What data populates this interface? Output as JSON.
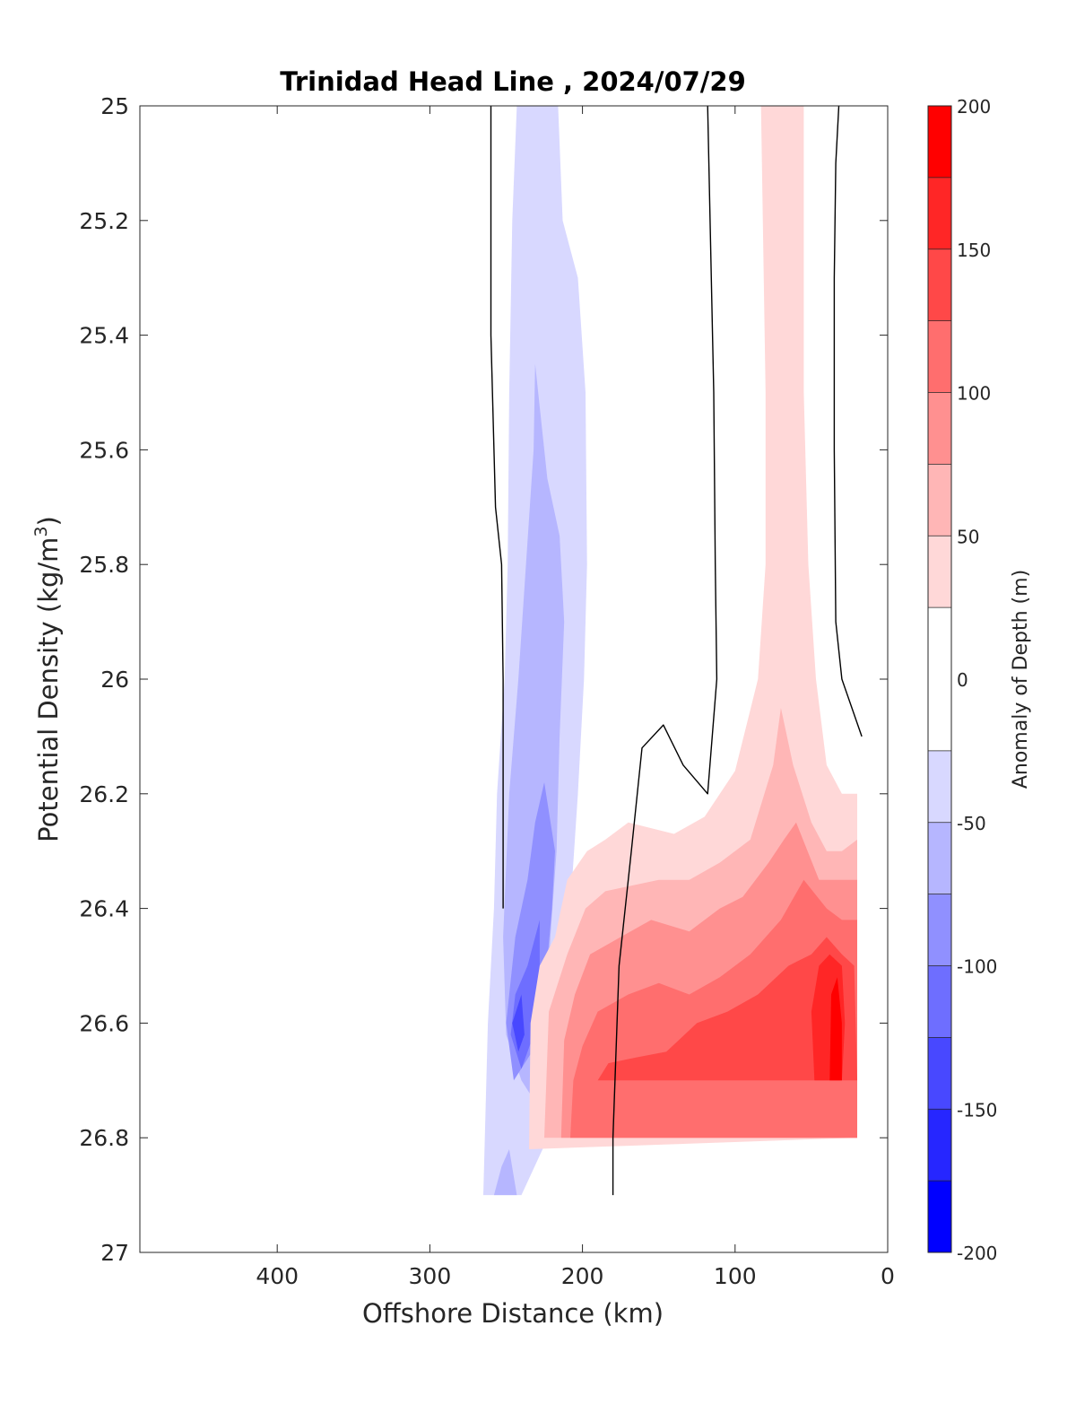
{
  "chart_data": {
    "type": "contourf",
    "title": "Trinidad Head Line , 2024/07/29",
    "xlabel": "Offshore Distance (km)",
    "ylabel_main": "Potential Density (kg/m",
    "ylabel_sup": "3",
    "ylabel_close": ")",
    "x_reversed": true,
    "xlim": [
      0,
      490
    ],
    "ylim": [
      25,
      27
    ],
    "y_reversed": true,
    "xticks": [
      400,
      300,
      200,
      100,
      0
    ],
    "xtick_labels": [
      "400",
      "300",
      "200",
      "100",
      "0"
    ],
    "yticks": [
      25,
      25.2,
      25.4,
      25.6,
      25.8,
      26,
      26.2,
      26.4,
      26.6,
      26.8,
      27
    ],
    "ytick_labels": [
      "25",
      "25.2",
      "25.4",
      "25.6",
      "25.8",
      "26",
      "26.2",
      "26.4",
      "26.6",
      "26.8",
      "27"
    ],
    "colorbar": {
      "label": "Anomaly of Depth (m)",
      "range": [
        -200,
        200
      ],
      "tick_values": [
        200,
        150,
        100,
        50,
        0,
        -50,
        -100,
        -150,
        -200
      ],
      "tick_labels": [
        "200",
        "150",
        "100",
        "50",
        "0",
        "-50",
        "-100",
        "-150",
        "-200"
      ],
      "levels": [
        {
          "from": 175,
          "to": 200,
          "color": "#ff0000"
        },
        {
          "from": 150,
          "to": 175,
          "color": "#ff2626"
        },
        {
          "from": 125,
          "to": 150,
          "color": "#ff4848"
        },
        {
          "from": 100,
          "to": 125,
          "color": "#ff6e6e"
        },
        {
          "from": 75,
          "to": 100,
          "color": "#ff9090"
        },
        {
          "from": 50,
          "to": 75,
          "color": "#ffb6b6"
        },
        {
          "from": 25,
          "to": 50,
          "color": "#ffd8d8"
        },
        {
          "from": -25,
          "to": 25,
          "color": "#ffffff"
        },
        {
          "from": -50,
          "to": -25,
          "color": "#d8d8ff"
        },
        {
          "from": -75,
          "to": -50,
          "color": "#b6b6ff"
        },
        {
          "from": -100,
          "to": -75,
          "color": "#9090ff"
        },
        {
          "from": -125,
          "to": -100,
          "color": "#6e6eff"
        },
        {
          "from": -150,
          "to": -125,
          "color": "#4848ff"
        },
        {
          "from": -175,
          "to": -150,
          "color": "#2626ff"
        },
        {
          "from": -200,
          "to": -175,
          "color": "#0000ff"
        }
      ]
    },
    "zero_contours": [
      [
        [
          260,
          25.0
        ],
        [
          260,
          25.4
        ],
        [
          257,
          25.7
        ],
        [
          253,
          25.8
        ],
        [
          252,
          26.0
        ],
        [
          252,
          26.4
        ]
      ],
      [
        [
          118,
          25.0
        ],
        [
          114,
          25.5
        ],
        [
          113,
          25.8
        ],
        [
          112,
          26.0
        ],
        [
          118,
          26.2
        ],
        [
          134,
          26.15
        ],
        [
          147,
          26.08
        ],
        [
          161,
          26.12
        ],
        [
          168,
          26.3
        ],
        [
          176,
          26.5
        ],
        [
          180,
          26.8
        ],
        [
          180,
          26.9
        ]
      ],
      [
        [
          32,
          25.0
        ],
        [
          34,
          25.1
        ],
        [
          35,
          25.3
        ],
        [
          35,
          25.6
        ],
        [
          34,
          25.9
        ],
        [
          30,
          26.0
        ],
        [
          17,
          26.1
        ]
      ]
    ],
    "regions": [
      {
        "level": -37.5,
        "points": [
          [
            243,
            25.0
          ],
          [
            216,
            25.0
          ],
          [
            213,
            25.2
          ],
          [
            203,
            25.3
          ],
          [
            198,
            25.5
          ],
          [
            197,
            25.8
          ],
          [
            199,
            26.0
          ],
          [
            203,
            26.2
          ],
          [
            208,
            26.4
          ],
          [
            212,
            26.6
          ],
          [
            214,
            26.75
          ],
          [
            240,
            26.9
          ],
          [
            265,
            26.9
          ],
          [
            262,
            26.6
          ],
          [
            258,
            26.4
          ],
          [
            256,
            26.2
          ],
          [
            251,
            26.0
          ],
          [
            249,
            25.8
          ],
          [
            248,
            25.5
          ],
          [
            246,
            25.2
          ]
        ]
      },
      {
        "level": -62.5,
        "points": [
          [
            231,
            25.45
          ],
          [
            223,
            25.65
          ],
          [
            215,
            25.75
          ],
          [
            212,
            25.9
          ],
          [
            215,
            26.1
          ],
          [
            217,
            26.3
          ],
          [
            221,
            26.45
          ],
          [
            224,
            26.6
          ],
          [
            228,
            26.75
          ],
          [
            240,
            26.7
          ],
          [
            250,
            26.62
          ],
          [
            252,
            26.45
          ],
          [
            248,
            26.2
          ],
          [
            242,
            26.0
          ],
          [
            237,
            25.8
          ],
          [
            232,
            25.6
          ]
        ]
      },
      {
        "level": -62.5,
        "points": [
          [
            253,
            26.85
          ],
          [
            248,
            26.82
          ],
          [
            243,
            26.9
          ],
          [
            258,
            26.9
          ]
        ]
      },
      {
        "level": -87.5,
        "points": [
          [
            225,
            26.18
          ],
          [
            231,
            26.25
          ],
          [
            236,
            26.35
          ],
          [
            244,
            26.45
          ],
          [
            250,
            26.6
          ],
          [
            245,
            26.7
          ],
          [
            233,
            26.65
          ],
          [
            225,
            26.55
          ],
          [
            220,
            26.4
          ],
          [
            218,
            26.3
          ]
        ]
      },
      {
        "level": -112.5,
        "points": [
          [
            228,
            26.42
          ],
          [
            236,
            26.5
          ],
          [
            244,
            26.55
          ],
          [
            247,
            26.62
          ],
          [
            240,
            26.68
          ],
          [
            232,
            26.62
          ],
          [
            228,
            26.52
          ]
        ]
      },
      {
        "level": -137.5,
        "points": [
          [
            240,
            26.55
          ],
          [
            246,
            26.6
          ],
          [
            242,
            26.65
          ],
          [
            238,
            26.62
          ]
        ]
      },
      {
        "level": 37.5,
        "points": [
          [
            83,
            25.0
          ],
          [
            55,
            25.0
          ],
          [
            55,
            25.5
          ],
          [
            52,
            25.8
          ],
          [
            47,
            26.0
          ],
          [
            40,
            26.15
          ],
          [
            30,
            26.2
          ],
          [
            20,
            26.2
          ],
          [
            20,
            26.8
          ],
          [
            235,
            26.82
          ],
          [
            234,
            26.6
          ],
          [
            228,
            26.5
          ],
          [
            218,
            26.45
          ],
          [
            210,
            26.35
          ],
          [
            197,
            26.3
          ],
          [
            185,
            26.28
          ],
          [
            170,
            26.25
          ],
          [
            140,
            26.27
          ],
          [
            120,
            26.24
          ],
          [
            100,
            26.16
          ],
          [
            85,
            26.0
          ],
          [
            80,
            25.8
          ],
          [
            80,
            25.5
          ]
        ]
      },
      {
        "level": 62.5,
        "points": [
          [
            70,
            26.05
          ],
          [
            62,
            26.15
          ],
          [
            50,
            26.25
          ],
          [
            40,
            26.3
          ],
          [
            30,
            26.3
          ],
          [
            20,
            26.28
          ],
          [
            20,
            26.8
          ],
          [
            225,
            26.8
          ],
          [
            222,
            26.58
          ],
          [
            210,
            26.48
          ],
          [
            198,
            26.4
          ],
          [
            185,
            26.37
          ],
          [
            150,
            26.35
          ],
          [
            130,
            26.35
          ],
          [
            110,
            26.32
          ],
          [
            90,
            26.28
          ],
          [
            75,
            26.15
          ]
        ]
      },
      {
        "level": 87.5,
        "points": [
          [
            60,
            26.25
          ],
          [
            45,
            26.35
          ],
          [
            30,
            26.35
          ],
          [
            20,
            26.35
          ],
          [
            20,
            26.8
          ],
          [
            214,
            26.8
          ],
          [
            212,
            26.63
          ],
          [
            205,
            26.55
          ],
          [
            195,
            26.48
          ],
          [
            175,
            26.45
          ],
          [
            155,
            26.42
          ],
          [
            130,
            26.44
          ],
          [
            110,
            26.4
          ],
          [
            95,
            26.38
          ],
          [
            78,
            26.32
          ],
          [
            68,
            26.28
          ]
        ]
      },
      {
        "level": 112.5,
        "points": [
          [
            55,
            26.35
          ],
          [
            40,
            26.4
          ],
          [
            30,
            26.42
          ],
          [
            20,
            26.42
          ],
          [
            20,
            26.8
          ],
          [
            208,
            26.8
          ],
          [
            206,
            26.7
          ],
          [
            200,
            26.64
          ],
          [
            190,
            26.58
          ],
          [
            170,
            26.55
          ],
          [
            150,
            26.53
          ],
          [
            130,
            26.55
          ],
          [
            110,
            26.52
          ],
          [
            90,
            26.48
          ],
          [
            70,
            26.42
          ]
        ]
      },
      {
        "level": 137.5,
        "points": [
          [
            40,
            26.45
          ],
          [
            30,
            26.48
          ],
          [
            22,
            26.5
          ],
          [
            20,
            26.7
          ],
          [
            190,
            26.7
          ],
          [
            183,
            26.67
          ],
          [
            165,
            26.66
          ],
          [
            145,
            26.65
          ],
          [
            125,
            26.6
          ],
          [
            105,
            26.58
          ],
          [
            85,
            26.55
          ],
          [
            65,
            26.5
          ],
          [
            50,
            26.48
          ]
        ]
      },
      {
        "level": 162.5,
        "points": [
          [
            38,
            26.48
          ],
          [
            30,
            26.5
          ],
          [
            28,
            26.6
          ],
          [
            30,
            26.7
          ],
          [
            48,
            26.7
          ],
          [
            50,
            26.58
          ],
          [
            45,
            26.5
          ]
        ]
      },
      {
        "level": 187.5,
        "points": [
          [
            33,
            26.52
          ],
          [
            30,
            26.6
          ],
          [
            30,
            26.7
          ],
          [
            38,
            26.7
          ],
          [
            37,
            26.55
          ]
        ]
      }
    ]
  }
}
